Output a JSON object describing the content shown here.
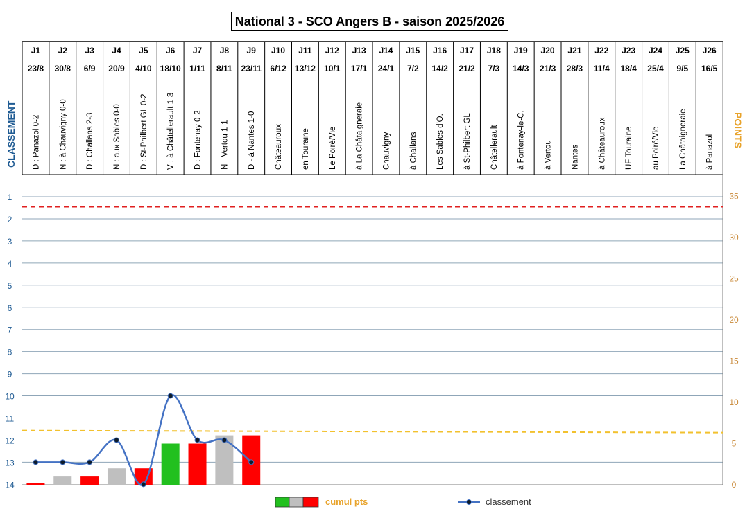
{
  "title": "National 3 - SCO Angers B - saison 2025/2026",
  "left_axis_label": "CLASSEMENT",
  "right_axis_label": "POINTS",
  "legend": {
    "points_label": "cumul pts",
    "ranking_label": "classement"
  },
  "colors": {
    "win": "#22c01f",
    "draw": "#bfbfbf",
    "loss": "#ff0000",
    "line": "#4472c4",
    "marker": "#0d1b2a",
    "red_dash": "#e02020",
    "yellow_dash": "#f2c12e",
    "left_axis": "#1f5b93",
    "right_axis": "#c98a3a",
    "grid": "#8fa6b8"
  },
  "chart_data": {
    "type": "bar+line",
    "title": "National 3 - SCO Angers B - saison 2025/2026",
    "journees": [
      {
        "j": "J1",
        "date": "23/8",
        "match": "D : Panazol 0-2"
      },
      {
        "j": "J2",
        "date": "30/8",
        "match": "N : à Chauvigny 0-0"
      },
      {
        "j": "J3",
        "date": "6/9",
        "match": "D : Challans 2-3"
      },
      {
        "j": "J4",
        "date": "20/9",
        "match": "N : aux Sables 0-0"
      },
      {
        "j": "J5",
        "date": "4/10",
        "match": "D : St-Philbert GL 0-2"
      },
      {
        "j": "J6",
        "date": "18/10",
        "match": "V : à Châtellerault 1-3"
      },
      {
        "j": "J7",
        "date": "1/11",
        "match": "D : Fontenay 0-2"
      },
      {
        "j": "J8",
        "date": "8/11",
        "match": "N - Vertou 1-1"
      },
      {
        "j": "J9",
        "date": "23/11",
        "match": "D - à Nantes 1-0"
      },
      {
        "j": "J10",
        "date": "6/12",
        "match": "Châteauroux"
      },
      {
        "j": "J11",
        "date": "13/12",
        "match": "en Touraine"
      },
      {
        "j": "J12",
        "date": "10/1",
        "match": "Le Poiré/Vie"
      },
      {
        "j": "J13",
        "date": "17/1",
        "match": "à La Châtaigneraie"
      },
      {
        "j": "J14",
        "date": "24/1",
        "match": "Chauvigny"
      },
      {
        "j": "J15",
        "date": "7/2",
        "match": "à Challans"
      },
      {
        "j": "J16",
        "date": "14/2",
        "match": "Les Sables d'O."
      },
      {
        "j": "J17",
        "date": "21/2",
        "match": "à St-Philbert GL"
      },
      {
        "j": "J18",
        "date": "7/3",
        "match": "Châtellerault"
      },
      {
        "j": "J19",
        "date": "14/3",
        "match": "à Fontenay-le-C."
      },
      {
        "j": "J20",
        "date": "21/3",
        "match": "à Vertou"
      },
      {
        "j": "J21",
        "date": "28/3",
        "match": "Nantes"
      },
      {
        "j": "J22",
        "date": "11/4",
        "match": "à Châteauroux"
      },
      {
        "j": "J23",
        "date": "18/4",
        "match": "UF Touraine"
      },
      {
        "j": "J24",
        "date": "25/4",
        "match": "au Poiré/Vie"
      },
      {
        "j": "J25",
        "date": "9/5",
        "match": "La Châtaigneraie"
      },
      {
        "j": "J26",
        "date": "16/5",
        "match": "à Panazol"
      }
    ],
    "points": [
      {
        "value": 0,
        "result": "loss"
      },
      {
        "value": 1,
        "result": "draw"
      },
      {
        "value": 1,
        "result": "loss"
      },
      {
        "value": 2,
        "result": "draw"
      },
      {
        "value": 2,
        "result": "loss"
      },
      {
        "value": 5,
        "result": "win"
      },
      {
        "value": 5,
        "result": "loss"
      },
      {
        "value": 6,
        "result": "draw"
      },
      {
        "value": 6,
        "result": "loss"
      }
    ],
    "classement": [
      13,
      13,
      13,
      12,
      14,
      10,
      12,
      12,
      13
    ],
    "y_left": {
      "min": 1,
      "max": 14,
      "ticks": [
        "1",
        "2",
        "3",
        "4",
        "5",
        "6",
        "7",
        "8",
        "9",
        "10",
        "11",
        "12",
        "13",
        "14"
      ],
      "reversed": true
    },
    "y_right": {
      "min": 0,
      "max": 37,
      "ticks": [
        "35",
        "30",
        "25",
        "20",
        "15",
        "10",
        "5",
        "0"
      ]
    },
    "red_threshold_rank": 1.45,
    "yellow_threshold_points": 6.5
  }
}
